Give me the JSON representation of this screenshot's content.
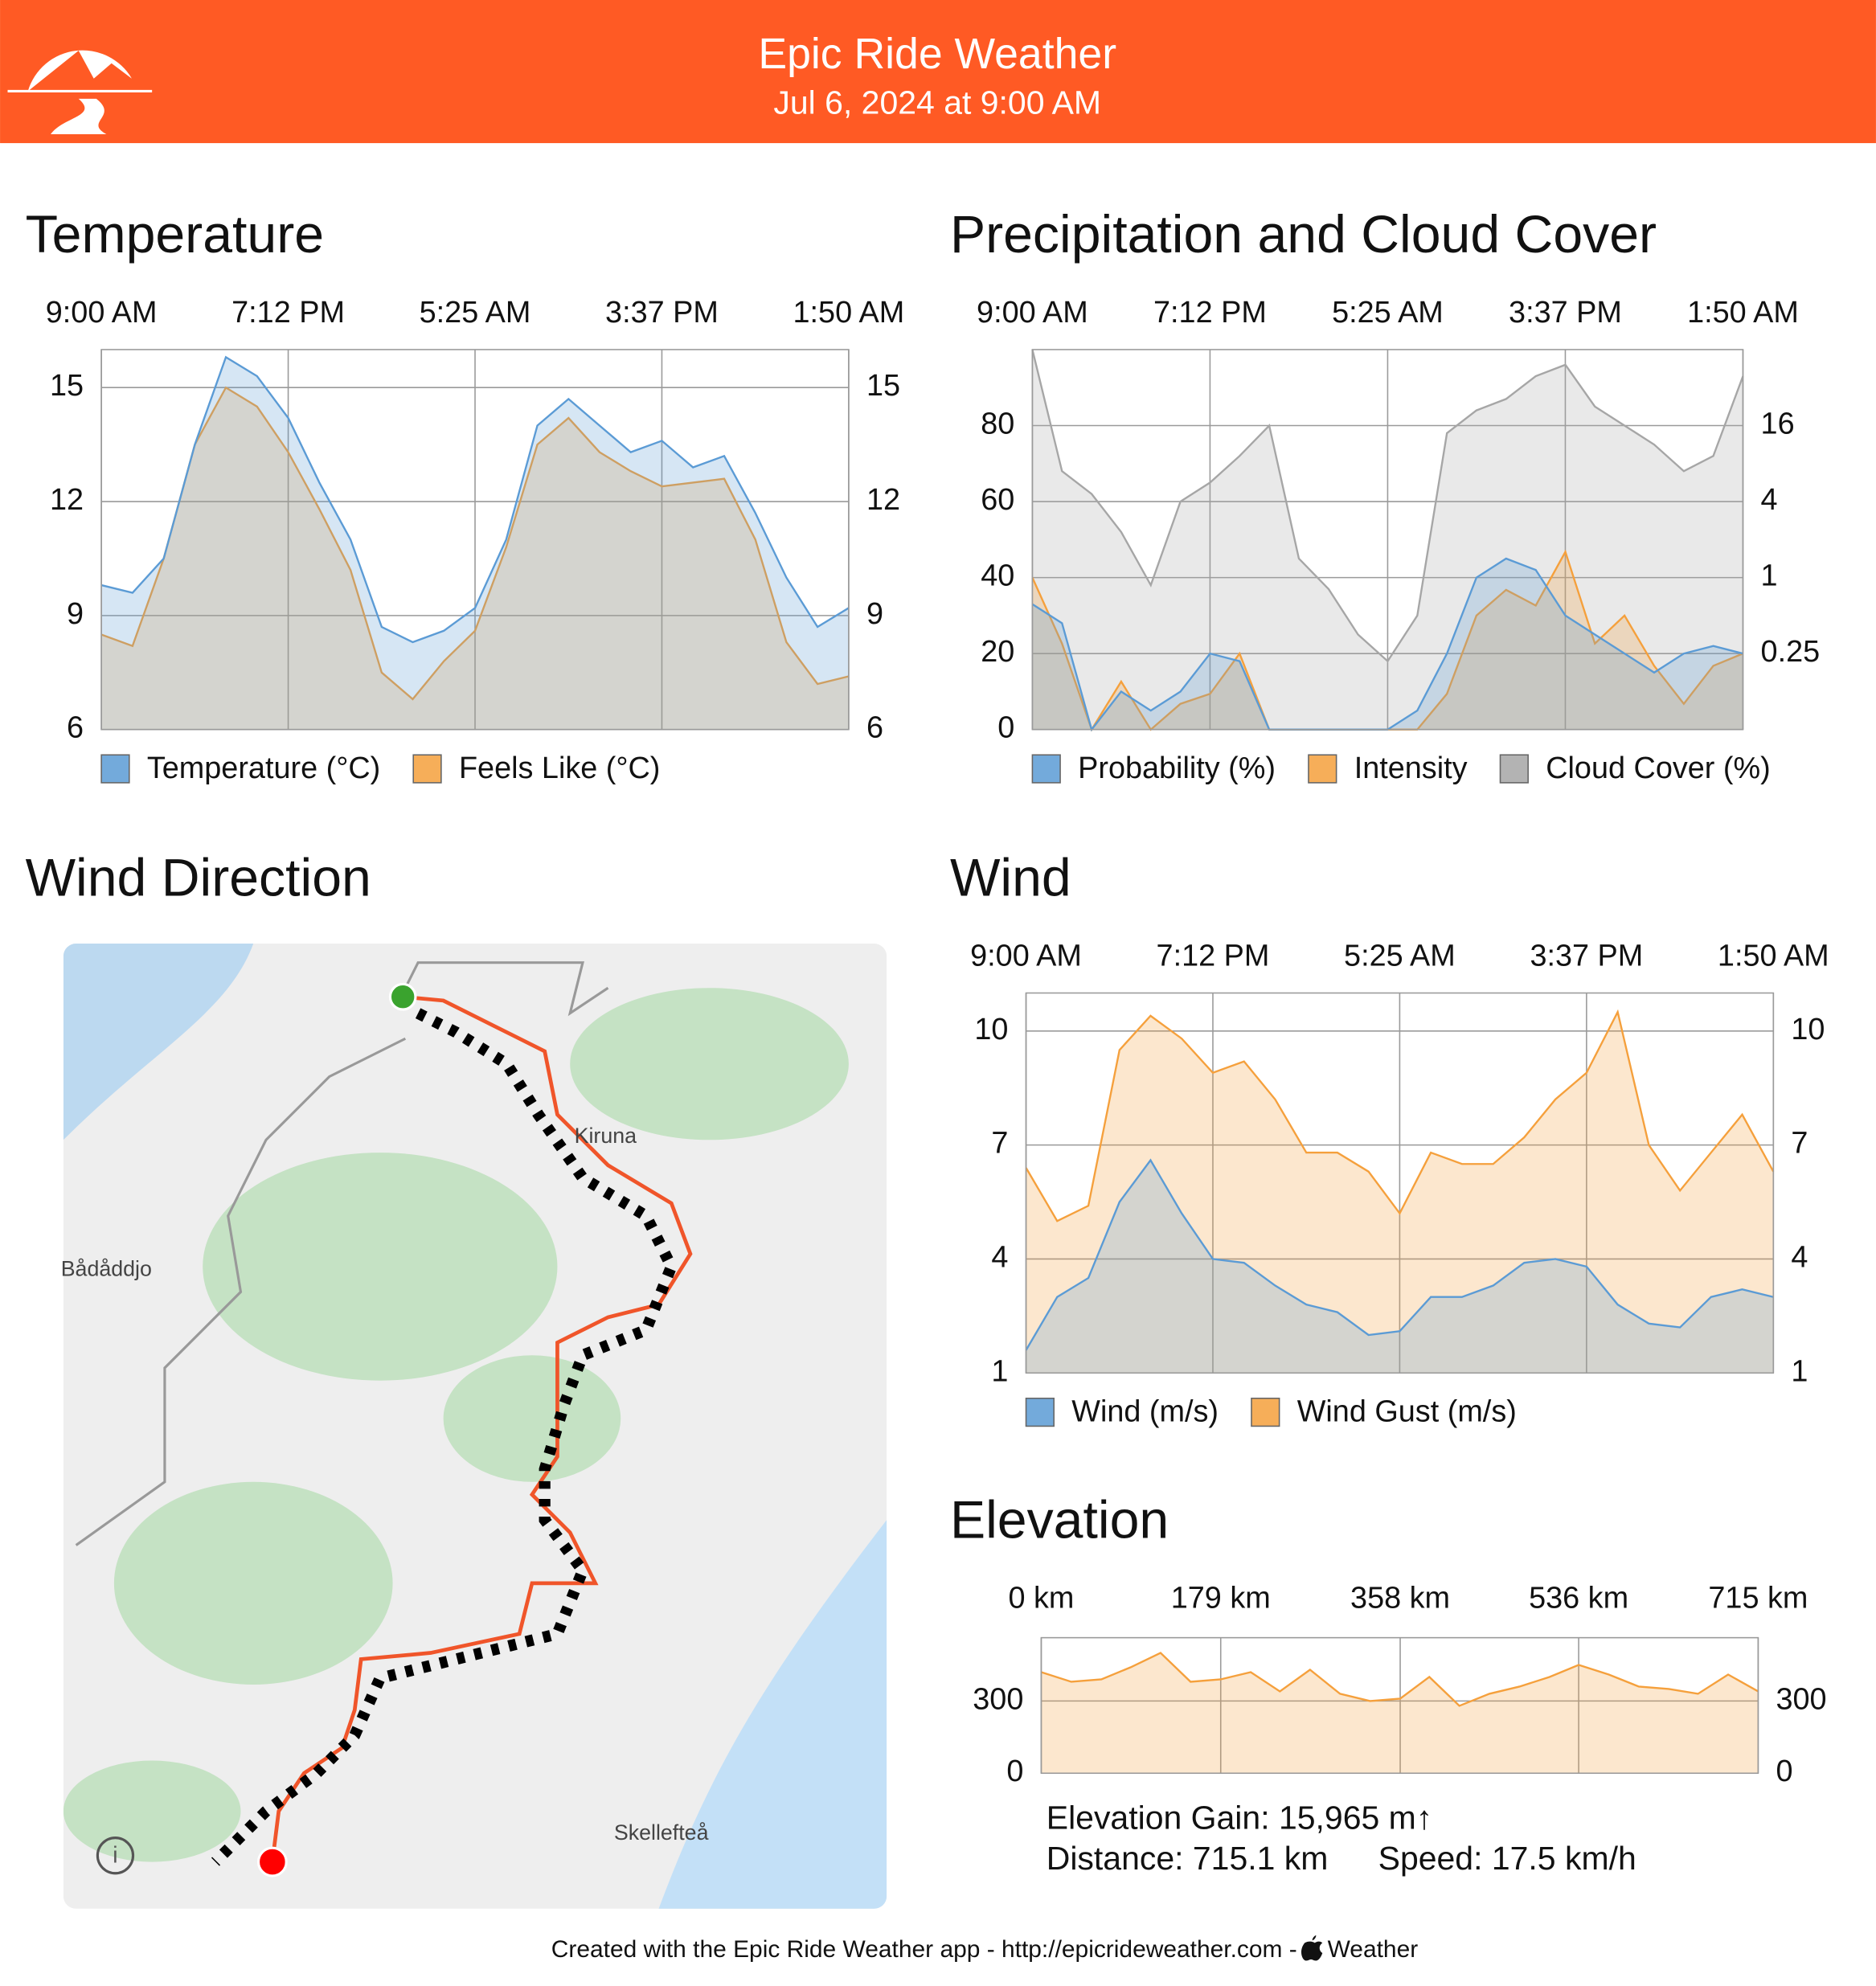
{
  "header": {
    "title": "Epic Ride Weather",
    "subtitle": "Jul 6, 2024 at 9:00 AM"
  },
  "chart_data": [
    {
      "type": "area",
      "title": "Temperature",
      "categories": [
        "9:00 AM",
        null,
        null,
        null,
        null,
        null,
        "7:12 PM",
        null,
        null,
        null,
        null,
        null,
        "5:25 AM",
        null,
        null,
        null,
        null,
        null,
        "3:37 PM",
        null,
        null,
        null,
        null,
        null,
        "1:50 AM"
      ],
      "series": [
        {
          "name": "Temperature (°C)",
          "color": "#5b9bd5",
          "values": [
            9.8,
            9.6,
            10.5,
            13.5,
            15.8,
            15.3,
            14.2,
            12.5,
            11,
            8.7,
            8.3,
            8.6,
            9.2,
            11,
            14,
            14.7,
            14,
            13.3,
            13.6,
            12.9,
            13.2,
            11.7,
            10,
            8.7,
            9.2
          ]
        },
        {
          "name": "Feels Like (°C)",
          "color": "#f5a03c",
          "values": [
            8.5,
            8.2,
            10.5,
            13.5,
            15,
            14.5,
            13.3,
            11.8,
            10.2,
            7.5,
            6.8,
            7.8,
            8.6,
            10.8,
            13.5,
            14.2,
            13.3,
            12.8,
            12.4,
            12.5,
            12.6,
            11,
            8.3,
            7.2,
            7.4
          ]
        }
      ],
      "ylim": [
        6,
        16
      ],
      "yticks": [
        6,
        9,
        12,
        15
      ],
      "y2lim": [
        6,
        16
      ],
      "y2ticks": [
        6,
        9,
        12,
        15
      ],
      "grid": true
    },
    {
      "type": "area",
      "title": "Precipitation and Cloud Cover",
      "categories": [
        "9:00 AM",
        null,
        null,
        null,
        null,
        null,
        "7:12 PM",
        null,
        null,
        null,
        null,
        null,
        "5:25 AM",
        null,
        null,
        null,
        null,
        null,
        "3:37 PM",
        null,
        null,
        null,
        null,
        null,
        "1:50 AM"
      ],
      "series": [
        {
          "name": "Probability (%)",
          "color": "#5b9bd5",
          "values": [
            33,
            28,
            0,
            10,
            5,
            10,
            20,
            18,
            0,
            0,
            0,
            0,
            0,
            5,
            20,
            40,
            45,
            42,
            30,
            25,
            20,
            15,
            20,
            22,
            20
          ]
        },
        {
          "name": "Intensity",
          "color": "#f5a03c",
          "axis": "y2",
          "values": [
            1,
            0.3,
            0.0625,
            0.15,
            0.0625,
            0.1,
            0.12,
            0.25,
            0.0625,
            0.0625,
            0.0625,
            0.0625,
            0.0625,
            0.0625,
            0.12,
            0.5,
            0.8,
            0.6,
            1.6,
            0.3,
            0.5,
            0.2,
            0.1,
            0.2,
            0.25
          ]
        },
        {
          "name": "Cloud Cover (%)",
          "color": "#a6a6a6",
          "values": [
            100,
            68,
            62,
            52,
            38,
            60,
            65,
            72,
            80,
            45,
            37,
            25,
            18,
            30,
            78,
            84,
            87,
            93,
            96,
            85,
            80,
            75,
            68,
            72,
            93
          ]
        }
      ],
      "ylim": [
        0,
        100
      ],
      "yticks": [
        0,
        20,
        40,
        60,
        80
      ],
      "y2lim": [
        0.0625,
        64
      ],
      "y2ticks": [
        0.25,
        1,
        4,
        16
      ],
      "y2log": true,
      "grid": true
    },
    {
      "type": "area",
      "title": "Wind",
      "categories": [
        "9:00 AM",
        null,
        null,
        null,
        null,
        null,
        "7:12 PM",
        null,
        null,
        null,
        null,
        null,
        "5:25 AM",
        null,
        null,
        null,
        null,
        null,
        "3:37 PM",
        null,
        null,
        null,
        null,
        null,
        "1:50 AM"
      ],
      "series": [
        {
          "name": "Wind (m/s)",
          "color": "#5b9bd5",
          "values": [
            1.6,
            3,
            3.5,
            5.5,
            6.6,
            5.2,
            4,
            3.9,
            3.3,
            2.8,
            2.6,
            2,
            2.1,
            3,
            3,
            3.3,
            3.9,
            4,
            3.8,
            2.8,
            2.3,
            2.2,
            3,
            3.2,
            3
          ]
        },
        {
          "name": "Wind Gust (m/s)",
          "color": "#f5a03c",
          "values": [
            6.4,
            5,
            5.4,
            9.5,
            10.4,
            9.8,
            8.9,
            9.2,
            8.2,
            6.8,
            6.8,
            6.3,
            5.2,
            6.8,
            6.5,
            6.5,
            7.2,
            8.2,
            8.9,
            10.5,
            7,
            5.8,
            6.8,
            7.8,
            6.3
          ]
        }
      ],
      "ylim": [
        1,
        11
      ],
      "yticks": [
        1,
        4,
        7,
        10
      ],
      "y2lim": [
        1,
        11
      ],
      "y2ticks": [
        1,
        4,
        7,
        10
      ],
      "grid": true
    },
    {
      "type": "area",
      "title": "Elevation",
      "x": [
        0,
        30,
        60,
        89,
        119,
        149,
        179,
        209,
        238,
        268,
        298,
        328,
        358,
        387,
        417,
        447,
        477,
        507,
        536,
        566,
        596,
        626,
        655,
        685,
        715
      ],
      "series": [
        {
          "color": "#f5a03c",
          "values": [
            420,
            380,
            390,
            440,
            500,
            380,
            390,
            420,
            340,
            430,
            330,
            300,
            310,
            400,
            280,
            330,
            360,
            400,
            450,
            410,
            360,
            350,
            330,
            410,
            340
          ]
        }
      ],
      "xlim": [
        0,
        715
      ],
      "xticks": [
        {
          "value": 0,
          "label": "0 km"
        },
        {
          "value": 179,
          "label": "179 km"
        },
        {
          "value": 358,
          "label": "358 km"
        },
        {
          "value": 536,
          "label": "536 km"
        },
        {
          "value": 715,
          "label": "715 km"
        }
      ],
      "ylim": [
        0,
        563
      ],
      "yticks": [
        0,
        300
      ],
      "y2lim": [
        0,
        563
      ],
      "y2ticks": [
        0,
        300
      ],
      "grid": true
    }
  ],
  "map": {
    "title": "Wind Direction",
    "labels": [
      "Kiruna",
      "Bådåddjo",
      "Skellefteå"
    ]
  },
  "elevation_stats": {
    "gain": "Elevation Gain: 15,965 m↑",
    "distance": "Distance: 715.1 km",
    "speed": "Speed: 17.5 km/h"
  },
  "footer": {
    "text": "Created with the Epic Ride Weather app - http://epicrideweather.com -",
    "source": "Weather"
  }
}
